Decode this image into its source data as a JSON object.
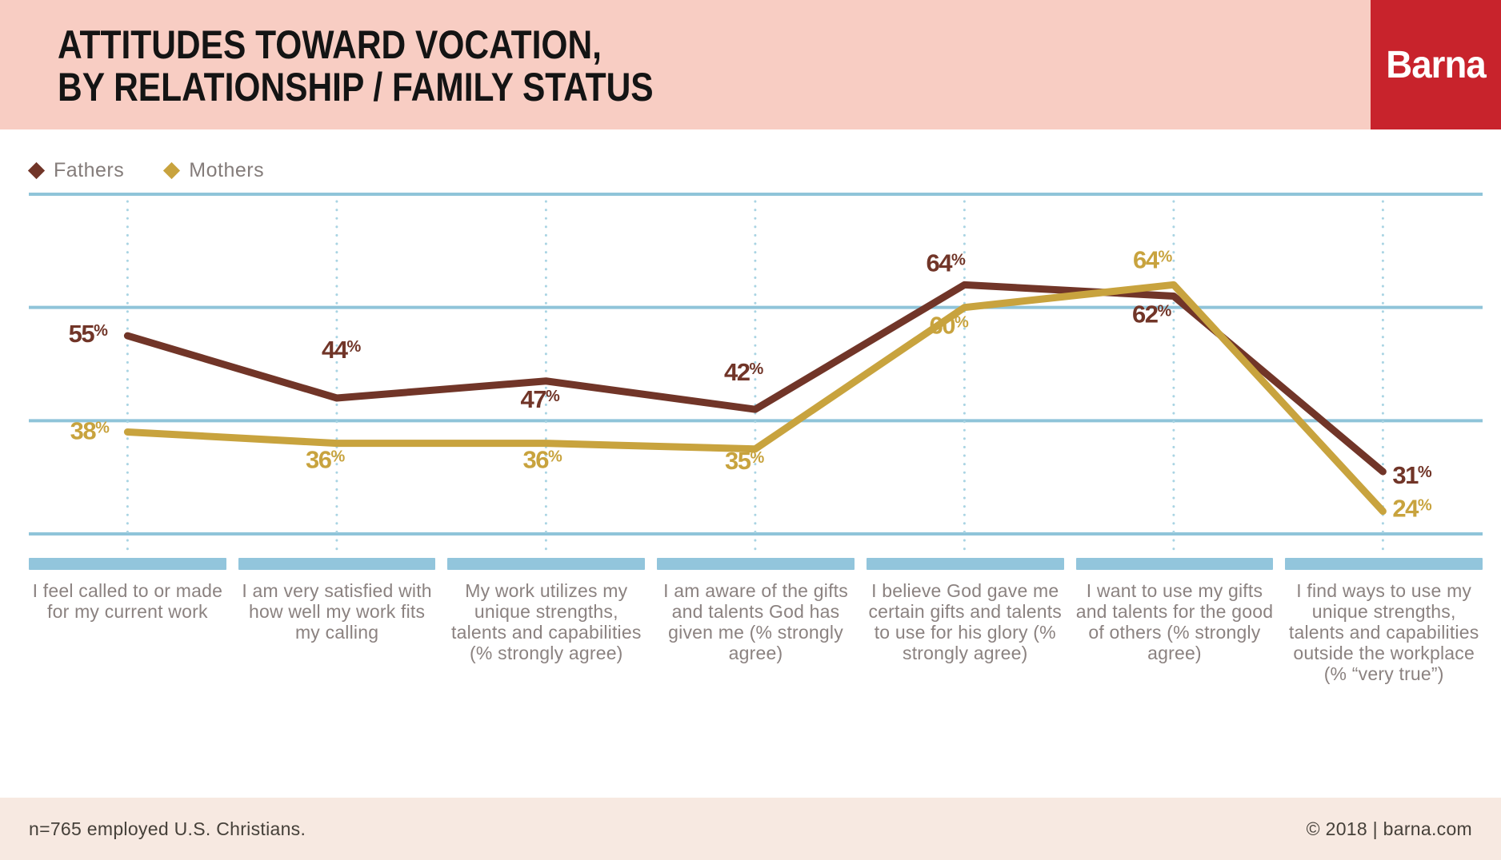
{
  "header": {
    "title_line1": "ATTITUDES TOWARD VOCATION,",
    "title_line2": "BY RELATIONSHIP / FAMILY STATUS",
    "logo_text": "Barna",
    "band_color": "#f8cdc3",
    "logo_bg_color": "#c8232c"
  },
  "chart_data": {
    "type": "line",
    "categories": [
      "I feel called to or made for my current work",
      "I am very satisfied with how well my work fits my calling",
      "My work utilizes my unique strengths, talents and capabilities (% strongly agree)",
      "I am aware of the gifts and talents God has given me (% strongly agree)",
      "I believe God gave me certain gifts and talents to use for his glory (% strongly agree)",
      "I want to use my gifts and talents for the good of others (% strongly agree)",
      "I find ways to use my unique strengths, talents and capabilities outside the workplace (% “very true”)"
    ],
    "series": [
      {
        "name": "Fathers",
        "color": "#713528",
        "values": [
          55,
          44,
          47,
          42,
          64,
          62,
          31
        ]
      },
      {
        "name": "Mothers",
        "color": "#c8a33e",
        "values": [
          38,
          36,
          36,
          35,
          60,
          64,
          24
        ]
      }
    ],
    "value_suffix": "%",
    "ylim": [
      20,
      80
    ],
    "y_gridlines": [
      20,
      40,
      60,
      80
    ],
    "grid_on": true,
    "grid_color": "#8fc4d9",
    "dotted_guide_color": "#a9d4e3",
    "category_bar_color": "#92c5dc",
    "category_label_color": "#8b8280",
    "legend_position": "top-left",
    "title": "Attitudes toward vocation, by relationship / family status"
  },
  "footer": {
    "left": "n=765 employed U.S. Christians.",
    "right": "© 2018 | barna.com"
  }
}
